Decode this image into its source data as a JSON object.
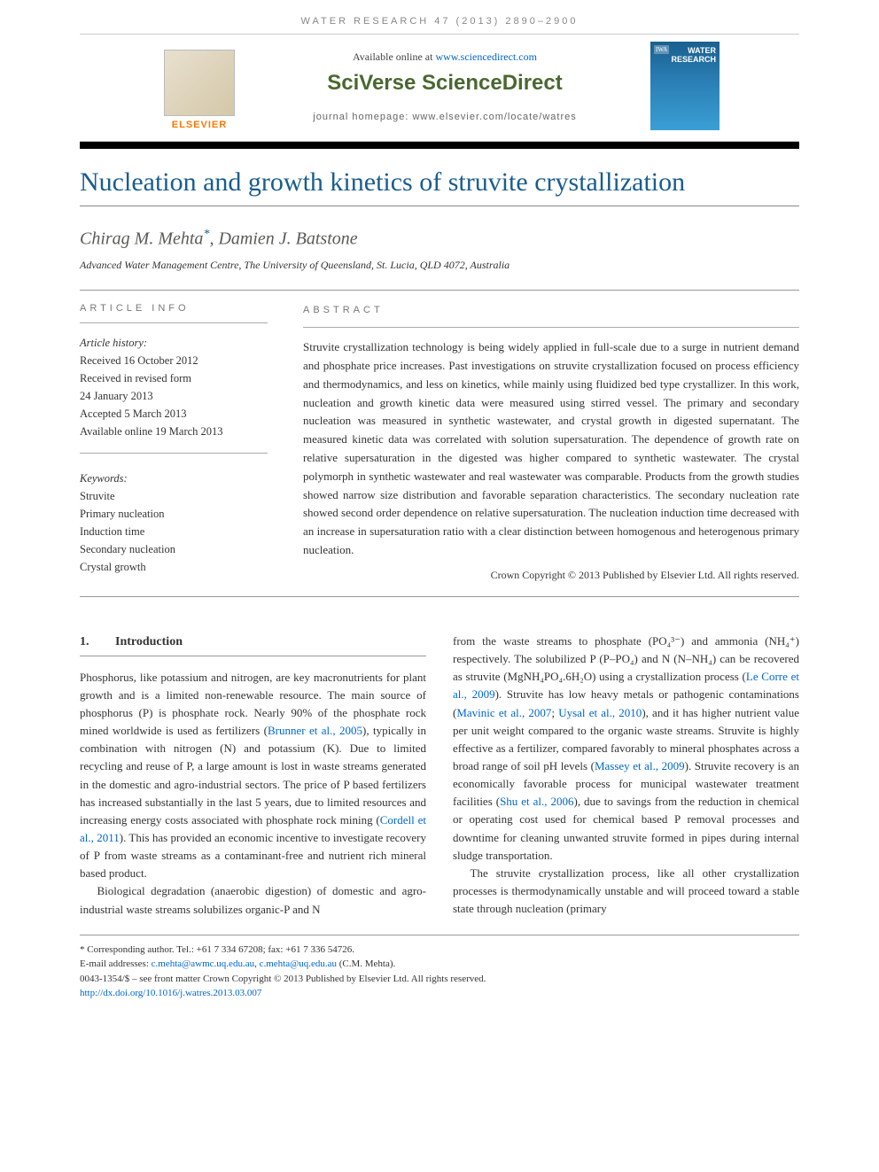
{
  "running_head": "WATER RESEARCH 47 (2013) 2890–2900",
  "available_text": "Available online at ",
  "sciencedirect_url": "www.sciencedirect.com",
  "brand": "SciVerse ScienceDirect",
  "journal_homepage_label": "journal homepage: www.elsevier.com/locate/watres",
  "elsevier_label": "ELSEVIER",
  "cover": {
    "iwa": "IWA",
    "line1": "WATER",
    "line2": "RESEARCH"
  },
  "title": "Nucleation and growth kinetics of struvite crystallization",
  "authors": "Chirag M. Mehta*, Damien J. Batstone",
  "affiliation": "Advanced Water Management Centre, The University of Queensland, St. Lucia, QLD 4072, Australia",
  "info_label": "ARTICLE INFO",
  "abstract_label": "ABSTRACT",
  "history": {
    "h0": "Article history:",
    "h1": "Received 16 October 2012",
    "h2": "Received in revised form",
    "h3": "24 January 2013",
    "h4": "Accepted 5 March 2013",
    "h5": "Available online 19 March 2013"
  },
  "keywords": {
    "label": "Keywords:",
    "k1": "Struvite",
    "k2": "Primary nucleation",
    "k3": "Induction time",
    "k4": "Secondary nucleation",
    "k5": "Crystal growth"
  },
  "abstract": "Struvite crystallization technology is being widely applied in full-scale due to a surge in nutrient demand and phosphate price increases. Past investigations on struvite crystallization focused on process efficiency and thermodynamics, and less on kinetics, while mainly using fluidized bed type crystallizer. In this work, nucleation and growth kinetic data were measured using stirred vessel. The primary and secondary nucleation was measured in synthetic wastewater, and crystal growth in digested supernatant. The measured kinetic data was correlated with solution supersaturation. The dependence of growth rate on relative supersaturation in the digested was higher compared to synthetic wastewater. The crystal polymorph in synthetic wastewater and real wastewater was comparable. Products from the growth studies showed narrow size distribution and favorable separation characteristics. The secondary nucleation rate showed second order dependence on relative supersaturation. The nucleation induction time decreased with an increase in supersaturation ratio with a clear distinction between homogenous and heterogenous primary nucleation.",
  "abstract_copyright": "Crown Copyright © 2013 Published by Elsevier Ltd. All rights reserved.",
  "section1": {
    "num": "1.",
    "title": "Introduction"
  },
  "col1_p1a": "Phosphorus, like potassium and nitrogen, are key macronutrients for plant growth and is a limited non-renewable resource. The main source of phosphorus (P) is phosphate rock. Nearly 90% of the phosphate rock mined worldwide is used as fertilizers (",
  "ref_brunner": "Brunner et al., 2005",
  "col1_p1b": "), typically in combination with nitrogen (N) and potassium (K). Due to limited recycling and reuse of P, a large amount is lost in waste streams generated in the domestic and agro-industrial sectors. The price of P based fertilizers has increased substantially in the last 5 years, due to limited resources and increasing energy costs associated with phosphate rock mining (",
  "ref_cordell": "Cordell et al., 2011",
  "col1_p1c": "). This has provided an economic incentive to investigate recovery of P from waste streams as a contaminant-free and nutrient rich mineral based product.",
  "col1_p2": "Biological degradation (anaerobic digestion) of domestic and agro-industrial waste streams solubilizes organic-P and N",
  "col2_p1a": "from the waste streams to phosphate (PO₄³⁻) and ammonia (NH₄⁺) respectively. The solubilized P (P–PO₄) and N (N–NH₄) can be recovered as struvite (MgNH₄PO₄.6H₂O) using a crystallization process (",
  "ref_lecorre": "Le Corre et al., 2009",
  "col2_p1b": "). Struvite has low heavy metals or pathogenic contaminations (",
  "ref_mavinic": "Mavinic et al., 2007",
  "ref_uysal": "Uysal et al., 2010",
  "col2_p1c": "), and it has higher nutrient value per unit weight compared to the organic waste streams. Struvite is highly effective as a fertilizer, compared favorably to mineral phosphates across a broad range of soil pH levels (",
  "ref_massey": "Massey et al., 2009",
  "col2_p1d": "). Struvite recovery is an economically favorable process for municipal wastewater treatment facilities (",
  "ref_shu": "Shu et al., 2006",
  "col2_p1e": "), due to savings from the reduction in chemical or operating cost used for chemical based P removal processes and downtime for cleaning unwanted struvite formed in pipes during internal sludge transportation.",
  "col2_p2": "The struvite crystallization process, like all other crystallization processes is thermodynamically unstable and will proceed toward a stable state through nucleation (primary",
  "footnotes": {
    "corr": "* Corresponding author. Tel.: +61 7 334 67208; fax: +61 7 336 54726.",
    "email_label": "E-mail addresses: ",
    "email1": "c.mehta@awmc.uq.edu.au",
    "email2": "c.mehta@uq.edu.au",
    "email_tail": " (C.M. Mehta).",
    "issn": "0043-1354/$ – see front matter Crown Copyright © 2013 Published by Elsevier Ltd. All rights reserved.",
    "doi": "http://dx.doi.org/10.1016/j.watres.2013.03.007"
  }
}
